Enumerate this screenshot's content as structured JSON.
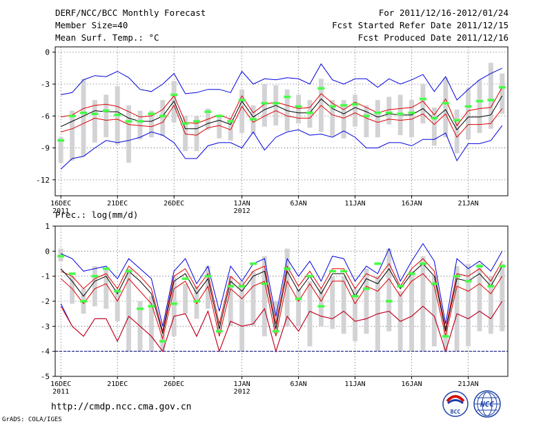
{
  "header": {
    "title": "DERF/NCC/BCC Monthly Forecast",
    "member_size": "Member Size=40",
    "variable": "Mean Surf. Temp.: °C",
    "period": "For 2011/12/16-2012/01/24",
    "started": "Fcst Started Refer Date 2011/12/15",
    "produced": "Fcst Produced Date 2011/12/16"
  },
  "footer": {
    "url": "http://cmdp.ncc.cma.gov.cn",
    "grads": "GrADS: COLA/IGES",
    "logo_bcc": "BCC",
    "logo_ncc": "NCC"
  },
  "colors": {
    "box": "#d3d3d6",
    "median": "#000000",
    "inner": "#dd0000",
    "outer": "#0000dd",
    "mean": "#44ff44",
    "ref": "#000080",
    "grid": "#555555"
  },
  "chart_data": [
    {
      "type": "line",
      "title": "Mean Surf. Temp.: °C",
      "ylabel": "°C",
      "ylim": [
        -13.5,
        0.5
      ],
      "yticks": [
        0,
        -3,
        -6,
        -9,
        -12
      ],
      "ytick_labels": [
        "0",
        "-3",
        "-6",
        "-9",
        "-12"
      ],
      "grid": true,
      "days": 40,
      "xticks": [
        {
          "day": 1,
          "label": "16DEC",
          "sub": "2011"
        },
        {
          "day": 6,
          "label": "21DEC",
          "sub": ""
        },
        {
          "day": 11,
          "label": "26DEC",
          "sub": ""
        },
        {
          "day": 17,
          "label": "1JAN",
          "sub": "2012"
        },
        {
          "day": 22,
          "label": "6JAN",
          "sub": ""
        },
        {
          "day": 27,
          "label": "11JAN",
          "sub": ""
        },
        {
          "day": 32,
          "label": "16JAN",
          "sub": ""
        },
        {
          "day": 37,
          "label": "21JAN",
          "sub": ""
        }
      ],
      "series": [
        {
          "name": "ensemble max",
          "role": "outer",
          "values": [
            -11.0,
            -10.0,
            -9.8,
            -9.0,
            -8.3,
            -8.5,
            -8.3,
            -8.0,
            -7.5,
            -7.8,
            -8.5,
            -10.0,
            -10.0,
            -8.8,
            -8.5,
            -8.5,
            -9.0,
            -7.5,
            -9.2,
            -8.0,
            -7.5,
            -7.3,
            -7.8,
            -7.7,
            -8.0,
            -7.4,
            -8.0,
            -9.0,
            -9.0,
            -8.5,
            -8.5,
            -8.8,
            -8.2,
            -8.2,
            -7.6,
            -10.2,
            -8.6,
            -8.6,
            -8.3,
            -6.9
          ]
        },
        {
          "name": "lower quartile",
          "role": "inner",
          "values": [
            -7.5,
            -7.2,
            -6.7,
            -6.2,
            -6.4,
            -6.3,
            -6.8,
            -6.9,
            -7.0,
            -6.6,
            -5.0,
            -7.7,
            -7.8,
            -7.1,
            -6.9,
            -7.3,
            -5.1,
            -6.6,
            -6.0,
            -5.5,
            -6.0,
            -6.2,
            -6.2,
            -5.0,
            -5.9,
            -6.2,
            -5.7,
            -6.2,
            -6.6,
            -6.3,
            -6.4,
            -6.3,
            -5.8,
            -6.8,
            -5.8,
            -8.0,
            -6.8,
            -6.8,
            -6.7,
            -5.3
          ]
        },
        {
          "name": "median",
          "role": "median",
          "values": [
            -7.0,
            -6.5,
            -6.0,
            -5.5,
            -5.6,
            -5.6,
            -6.2,
            -6.5,
            -6.5,
            -6.0,
            -4.6,
            -7.2,
            -7.2,
            -6.7,
            -6.4,
            -6.8,
            -4.6,
            -6.1,
            -5.4,
            -5.0,
            -5.5,
            -5.7,
            -5.7,
            -4.4,
            -5.3,
            -5.8,
            -5.2,
            -5.6,
            -6.1,
            -5.8,
            -5.9,
            -5.9,
            -5.3,
            -6.3,
            -5.4,
            -7.3,
            -6.1,
            -6.1,
            -5.9,
            -4.1
          ]
        },
        {
          "name": "upper quartile",
          "role": "inner",
          "values": [
            -6.1,
            -5.9,
            -5.3,
            -5.0,
            -4.9,
            -5.1,
            -5.6,
            -6.1,
            -6.0,
            -5.4,
            -4.1,
            -6.6,
            -6.7,
            -6.3,
            -5.9,
            -6.3,
            -4.1,
            -5.7,
            -4.9,
            -4.7,
            -5.0,
            -5.3,
            -5.2,
            -3.9,
            -4.8,
            -5.4,
            -4.7,
            -5.2,
            -5.7,
            -5.4,
            -5.3,
            -5.2,
            -4.6,
            -5.9,
            -4.4,
            -6.9,
            -5.5,
            -5.3,
            -5.2,
            -3.3
          ]
        },
        {
          "name": "ensemble min",
          "role": "outer",
          "values": [
            -4.0,
            -3.8,
            -2.6,
            -2.2,
            -2.3,
            -1.8,
            -2.4,
            -3.5,
            -3.7,
            -3.0,
            -2.0,
            -3.9,
            -3.8,
            -3.5,
            -3.5,
            -3.8,
            -1.8,
            -3.0,
            -2.5,
            -2.6,
            -2.4,
            -2.5,
            -3.0,
            -1.1,
            -2.6,
            -3.0,
            -2.5,
            -2.5,
            -3.3,
            -2.5,
            -3.0,
            -2.6,
            -2.1,
            -3.7,
            -2.3,
            -4.5,
            -3.5,
            -2.6,
            -2.0,
            -1.5
          ]
        }
      ],
      "box_low": [
        -10.4,
        -10.2,
        -9.8,
        -8.5,
        -8.0,
        -8.7,
        -10.4,
        -8.2,
        -8.0,
        -7.9,
        -6.6,
        -9.3,
        -9.3,
        -7.3,
        -8.1,
        -8.3,
        -7.6,
        -7.7,
        -7.0,
        -6.9,
        -7.4,
        -6.7,
        -7.1,
        -7.5,
        -7.9,
        -8.1,
        -7.0,
        -8.0,
        -8.0,
        -6.8,
        -7.8,
        -8.0,
        -6.7,
        -8.8,
        -8.0,
        -9.5,
        -8.2,
        -7.6,
        -7.2,
        -5.8
      ],
      "box_high": [
        -8.0,
        -5.5,
        -2.5,
        -4.5,
        -4.0,
        -3.2,
        -5.0,
        -5.5,
        -5.5,
        -4.5,
        -2.7,
        -6.0,
        -6.0,
        -5.3,
        -6.0,
        -6.2,
        -3.5,
        -5.0,
        -3.0,
        -3.1,
        -3.5,
        -4.0,
        -4.5,
        -2.5,
        -4.5,
        -4.5,
        -4.0,
        -5.0,
        -4.5,
        -4.2,
        -4.0,
        -4.5,
        -3.0,
        -5.2,
        -2.4,
        -5.4,
        -3.4,
        -2.6,
        -1.0,
        -2.0
      ],
      "mean_marks": [
        -8.3,
        -6.0,
        -5.7,
        -5.8,
        -5.5,
        -5.9,
        -6.5,
        -6.5,
        -5.8,
        -6.0,
        -4.0,
        -6.7,
        -6.5,
        -5.6,
        -6.0,
        -6.5,
        -4.5,
        -6.3,
        -4.8,
        -4.8,
        -4.2,
        -5.1,
        -5.7,
        -3.4,
        -5.1,
        -5.0,
        -4.9,
        -6.0,
        -5.7,
        -5.7,
        -5.8,
        -5.7,
        -4.4,
        -6.2,
        -4.8,
        -6.4,
        -5.1,
        -4.6,
        -4.5,
        -3.3
      ]
    },
    {
      "type": "line",
      "title": "Prec.: log(mm/d)",
      "ylabel": "log(mm/d)",
      "ylim": [
        -5,
        1
      ],
      "yticks": [
        1,
        0,
        -1,
        -2,
        -3,
        -4,
        -5
      ],
      "ytick_labels": [
        "1",
        "0",
        "-1",
        "-2",
        "-3",
        "-4",
        "-5"
      ],
      "grid": true,
      "days": 40,
      "reference_line": -4,
      "xticks": [
        {
          "day": 1,
          "label": "16DEC",
          "sub": "2011"
        },
        {
          "day": 6,
          "label": "21DEC",
          "sub": ""
        },
        {
          "day": 11,
          "label": "26DEC",
          "sub": ""
        },
        {
          "day": 17,
          "label": "1JAN",
          "sub": "2012"
        },
        {
          "day": 22,
          "label": "6JAN",
          "sub": ""
        },
        {
          "day": 27,
          "label": "11JAN",
          "sub": ""
        },
        {
          "day": 32,
          "label": "16JAN",
          "sub": ""
        },
        {
          "day": 37,
          "label": "21JAN",
          "sub": ""
        }
      ],
      "series": [
        {
          "name": "ensemble max",
          "role": "outer",
          "values": [
            -0.1,
            -0.3,
            -0.8,
            -0.7,
            -0.6,
            -1.1,
            -0.3,
            -0.7,
            -1.1,
            -3.0,
            -0.8,
            -0.3,
            -1.3,
            -0.6,
            -2.4,
            -0.6,
            -1.2,
            -0.5,
            -0.3,
            -2.6,
            -0.3,
            -1.0,
            -0.4,
            -1.2,
            -0.2,
            -0.3,
            -1.2,
            -0.6,
            -0.9,
            0.1,
            -1.2,
            -0.4,
            0.3,
            -0.4,
            -2.9,
            -0.3,
            -0.7,
            -0.4,
            -0.8,
            0.0
          ]
        },
        {
          "name": "upper quartile",
          "role": "inner",
          "values": [
            -0.8,
            -1.0,
            -1.5,
            -1.1,
            -0.9,
            -1.5,
            -0.6,
            -1.0,
            -1.5,
            -3.2,
            -1.0,
            -0.7,
            -1.5,
            -0.9,
            -2.9,
            -1.0,
            -1.4,
            -0.8,
            -0.6,
            -2.9,
            -0.6,
            -1.4,
            -0.8,
            -1.5,
            -0.7,
            -0.7,
            -1.5,
            -0.9,
            -1.1,
            -0.5,
            -1.4,
            -0.7,
            -0.3,
            -0.8,
            -3.1,
            -0.9,
            -1.0,
            -0.7,
            -1.2,
            -0.4
          ]
        },
        {
          "name": "median",
          "role": "median",
          "values": [
            -0.7,
            -1.2,
            -1.8,
            -1.2,
            -1.0,
            -1.7,
            -0.8,
            -1.2,
            -1.7,
            -3.3,
            -1.2,
            -0.9,
            -1.7,
            -1.1,
            -3.1,
            -1.2,
            -1.6,
            -1.0,
            -0.8,
            -3.1,
            -0.8,
            -1.6,
            -1.0,
            -1.7,
            -0.9,
            -0.9,
            -1.8,
            -1.1,
            -1.3,
            -0.7,
            -1.5,
            -0.9,
            -0.5,
            -1.0,
            -3.2,
            -1.1,
            -1.2,
            -0.9,
            -1.4,
            -0.6
          ]
        },
        {
          "name": "lower quartile",
          "role": "inner",
          "values": [
            -1.1,
            -1.5,
            -2.1,
            -1.5,
            -1.3,
            -2.0,
            -1.1,
            -1.6,
            -2.1,
            -3.5,
            -1.5,
            -1.2,
            -2.1,
            -1.4,
            -3.4,
            -1.5,
            -1.9,
            -1.4,
            -1.2,
            -3.4,
            -1.2,
            -2.0,
            -1.3,
            -2.0,
            -1.2,
            -1.2,
            -2.1,
            -1.4,
            -1.6,
            -1.1,
            -1.8,
            -1.2,
            -0.9,
            -1.4,
            -3.4,
            -1.4,
            -1.6,
            -1.3,
            -1.7,
            -1.0
          ]
        },
        {
          "name": "ensemble min",
          "role": "outer",
          "values": [
            -2.1,
            -3.0,
            -3.4,
            -2.7,
            -2.7,
            -3.6,
            -2.6,
            -3.0,
            -3.4,
            -4.0,
            -2.6,
            -2.5,
            -3.4,
            -2.4,
            -4.0,
            -2.8,
            -3.0,
            -2.9,
            -2.3,
            -4.0,
            -2.6,
            -3.2,
            -2.4,
            -2.6,
            -2.7,
            -2.4,
            -2.8,
            -2.7,
            -2.5,
            -2.4,
            -2.8,
            -2.6,
            -2.2,
            -2.6,
            -4.0,
            -2.5,
            -2.7,
            -2.4,
            -2.7,
            -2.0
          ]
        },
        {
          "name": "lower bound",
          "role": "inner",
          "values": [
            -2.2,
            -3.0,
            -3.4,
            -2.7,
            -2.7,
            -3.6,
            -2.6,
            -3.0,
            -3.4,
            -4.0,
            -2.6,
            -2.5,
            -3.4,
            -2.4,
            -4.0,
            -2.8,
            -3.0,
            -2.9,
            -2.3,
            -4.0,
            -2.6,
            -3.2,
            -2.4,
            -2.6,
            -2.7,
            -2.4,
            -2.8,
            -2.7,
            -2.5,
            -2.4,
            -2.8,
            -2.6,
            -2.2,
            -2.6,
            -4.0,
            -2.5,
            -2.7,
            -2.4,
            -2.7,
            -2.0
          ]
        }
      ],
      "box_low": [
        -0.4,
        -2.1,
        -2.5,
        -2.2,
        -2.3,
        -2.8,
        -4.0,
        -4.0,
        -4.0,
        -4.0,
        -3.4,
        -2.5,
        -2.7,
        -2.3,
        -3.3,
        -3.0,
        -4.0,
        -3.0,
        -3.4,
        -3.3,
        -3.0,
        -3.0,
        -3.8,
        -3.0,
        -3.1,
        -3.3,
        -3.6,
        -3.3,
        -4.0,
        -3.2,
        -4.0,
        -4.0,
        -4.0,
        -3.8,
        -4.0,
        -4.0,
        -3.8,
        -3.2,
        -3.3,
        -3.2
      ],
      "box_high": [
        0.1,
        -1.0,
        -1.5,
        -0.6,
        -0.7,
        -1.5,
        -0.7,
        -2.0,
        -1.8,
        -3.3,
        -1.0,
        -1.3,
        -1.4,
        -0.6,
        -2.8,
        -1.0,
        -1.2,
        -0.8,
        -0.2,
        -2.0,
        0.1,
        -1.5,
        -1.2,
        -1.5,
        -1.0,
        -1.0,
        -1.5,
        -0.7,
        -1.0,
        0.1,
        -1.6,
        -0.8,
        -0.2,
        -1.0,
        -3.0,
        -0.6,
        -0.5,
        -0.5,
        -1.0,
        -0.5
      ],
      "mean_marks": [
        -0.2,
        -0.9,
        -2.0,
        -1.0,
        -0.7,
        -1.6,
        -0.8,
        -2.3,
        -2.2,
        -3.6,
        -2.1,
        -1.1,
        -2.0,
        -1.0,
        -3.2,
        -1.4,
        -1.4,
        -0.5,
        -1.3,
        -3.2,
        -0.7,
        -1.9,
        -1.0,
        -2.2,
        -0.8,
        -0.8,
        -1.8,
        -1.5,
        -0.5,
        -2.0,
        -1.4,
        -0.9,
        -0.5,
        -1.3,
        -3.4,
        -1.0,
        -1.2,
        -0.6,
        -1.4,
        -0.6
      ]
    }
  ]
}
